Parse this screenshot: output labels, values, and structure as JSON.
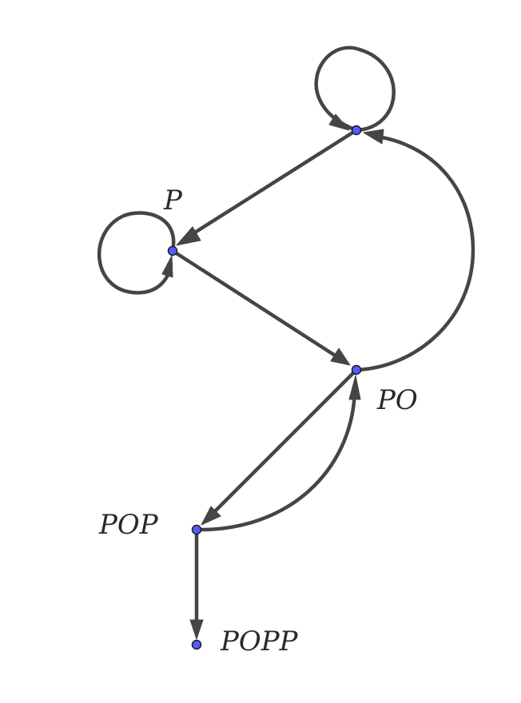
{
  "diagram": {
    "type": "state-transition-graph",
    "colors": {
      "edge": "#454545",
      "node_fill": "#5a5af5",
      "node_stroke": "#1a1a33",
      "label": "#2a2a2a"
    },
    "nodes": [
      {
        "id": "empty",
        "label": ""
      },
      {
        "id": "p",
        "label": "P"
      },
      {
        "id": "po",
        "label": "PO"
      },
      {
        "id": "pop",
        "label": "POP"
      },
      {
        "id": "popp",
        "label": "POPP"
      }
    ],
    "edges": [
      {
        "from": "empty",
        "to": "empty",
        "kind": "self-loop"
      },
      {
        "from": "empty",
        "to": "p",
        "kind": "straight"
      },
      {
        "from": "p",
        "to": "p",
        "kind": "self-loop"
      },
      {
        "from": "p",
        "to": "po",
        "kind": "straight"
      },
      {
        "from": "po",
        "to": "empty",
        "kind": "curved"
      },
      {
        "from": "po",
        "to": "pop",
        "kind": "straight"
      },
      {
        "from": "pop",
        "to": "po",
        "kind": "curved"
      },
      {
        "from": "pop",
        "to": "popp",
        "kind": "straight"
      }
    ]
  }
}
